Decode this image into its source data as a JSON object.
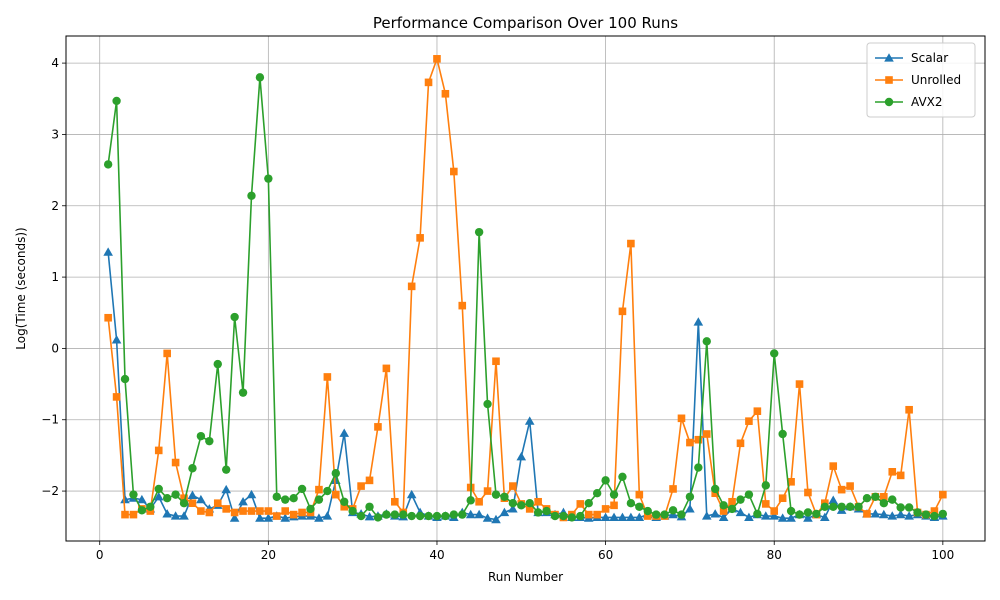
{
  "chart_data": {
    "type": "line",
    "title": "Performance Comparison Over 100 Runs",
    "xlabel": "Run Number",
    "ylabel": "Log(Time (seconds))",
    "xlim": [
      -4,
      105
    ],
    "ylim": [
      -2.7,
      4.38
    ],
    "xticks": [
      0,
      20,
      40,
      60,
      80,
      100
    ],
    "yticks": [
      -2,
      -1,
      0,
      1,
      2,
      3,
      4
    ],
    "xtick_labels": [
      "0",
      "20",
      "40",
      "60",
      "80",
      "100"
    ],
    "ytick_labels": [
      "−2",
      "−1",
      "0",
      "1",
      "2",
      "3",
      "4"
    ],
    "grid": true,
    "legend_position": "top-right",
    "series": [
      {
        "name": "Scalar",
        "color": "#1f77b4",
        "marker": "triangle",
        "values": [
          1.35,
          0.12,
          -2.12,
          -2.1,
          -2.12,
          -2.25,
          -2.08,
          -2.32,
          -2.35,
          -2.35,
          -2.06,
          -2.12,
          -2.25,
          -2.2,
          -1.98,
          -2.38,
          -2.15,
          -2.05,
          -2.38,
          -2.38,
          -2.35,
          -2.38,
          -2.36,
          -2.35,
          -2.35,
          -2.38,
          -2.35,
          -1.85,
          -1.19,
          -2.3,
          -2.32,
          -2.36,
          -2.35,
          -2.32,
          -2.35,
          -2.36,
          -2.05,
          -2.3,
          -2.35,
          -2.37,
          -2.35,
          -2.37,
          -2.3,
          -2.33,
          -2.33,
          -2.38,
          -2.4,
          -2.3,
          -2.25,
          -1.52,
          -1.02,
          -2.3,
          -2.3,
          -2.33,
          -2.3,
          -2.37,
          -2.37,
          -2.38,
          -2.37,
          -2.37,
          -2.37,
          -2.37,
          -2.37,
          -2.37,
          -2.33,
          -2.37,
          -2.35,
          -2.33,
          -2.36,
          -2.25,
          0.37,
          -2.35,
          -2.32,
          -2.37,
          -2.25,
          -2.3,
          -2.37,
          -2.33,
          -2.35,
          -2.35,
          -2.38,
          -2.38,
          -2.33,
          -2.38,
          -2.33,
          -2.37,
          -2.13,
          -2.27,
          -2.22,
          -2.25,
          -2.32,
          -2.32,
          -2.33,
          -2.35,
          -2.33,
          -2.35,
          -2.33,
          -2.35,
          -2.37,
          -2.35
        ]
      },
      {
        "name": "Unrolled",
        "color": "#ff7f0e",
        "marker": "square",
        "values": [
          0.43,
          -0.68,
          -2.33,
          -2.33,
          -2.25,
          -2.28,
          -1.43,
          -0.07,
          -1.6,
          -2.1,
          -2.17,
          -2.28,
          -2.3,
          -2.17,
          -2.25,
          -2.3,
          -2.28,
          -2.28,
          -2.28,
          -2.28,
          -2.35,
          -2.28,
          -2.33,
          -2.3,
          -2.3,
          -1.98,
          -0.4,
          -2.05,
          -2.22,
          -2.25,
          -1.93,
          -1.85,
          -1.1,
          -0.28,
          -2.15,
          -2.3,
          0.87,
          1.55,
          3.73,
          4.06,
          3.57,
          2.48,
          0.6,
          -1.95,
          -2.15,
          -2.0,
          -0.18,
          -2.1,
          -1.93,
          -2.18,
          -2.25,
          -2.15,
          -2.25,
          -2.33,
          -2.37,
          -2.33,
          -2.18,
          -2.33,
          -2.33,
          -2.25,
          -2.2,
          0.52,
          1.47,
          -2.05,
          -2.35,
          -2.35,
          -2.35,
          -1.97,
          -0.98,
          -1.32,
          -1.28,
          -1.2,
          -2.03,
          -2.28,
          -2.15,
          -1.33,
          -1.02,
          -0.88,
          -2.18,
          -2.28,
          -2.1,
          -1.87,
          -0.5,
          -2.02,
          -2.33,
          -2.17,
          -1.65,
          -1.98,
          -1.93,
          -2.22,
          -2.32,
          -2.08,
          -2.08,
          -1.73,
          -1.78,
          -0.86,
          -2.3,
          -2.33,
          -2.28,
          -2.05
        ]
      },
      {
        "name": "AVX2",
        "color": "#2ca02c",
        "marker": "circle",
        "values": [
          2.58,
          3.47,
          -0.43,
          -2.05,
          -2.27,
          -2.22,
          -1.97,
          -2.1,
          -2.05,
          -2.17,
          -1.68,
          -1.23,
          -1.3,
          -0.22,
          -1.7,
          0.44,
          -0.62,
          2.14,
          3.8,
          2.38,
          -2.08,
          -2.12,
          -2.1,
          -1.97,
          -2.25,
          -2.12,
          -2.0,
          -1.75,
          -2.15,
          -2.28,
          -2.35,
          -2.22,
          -2.37,
          -2.33,
          -2.33,
          -2.33,
          -2.35,
          -2.35,
          -2.35,
          -2.35,
          -2.35,
          -2.33,
          -2.33,
          -2.13,
          1.63,
          -0.78,
          -2.05,
          -2.08,
          -2.17,
          -2.2,
          -2.17,
          -2.3,
          -2.28,
          -2.35,
          -2.35,
          -2.37,
          -2.35,
          -2.17,
          -2.03,
          -1.85,
          -2.05,
          -1.8,
          -2.17,
          -2.22,
          -2.28,
          -2.33,
          -2.33,
          -2.27,
          -2.33,
          -2.08,
          -1.67,
          0.1,
          -1.97,
          -2.2,
          -2.25,
          -2.12,
          -2.05,
          -2.32,
          -1.92,
          -0.07,
          -1.2,
          -2.28,
          -2.33,
          -2.3,
          -2.32,
          -2.22,
          -2.22,
          -2.22,
          -2.22,
          -2.22,
          -2.1,
          -2.08,
          -2.17,
          -2.12,
          -2.23,
          -2.23,
          -2.3,
          -2.33,
          -2.35,
          -2.32
        ]
      }
    ]
  }
}
